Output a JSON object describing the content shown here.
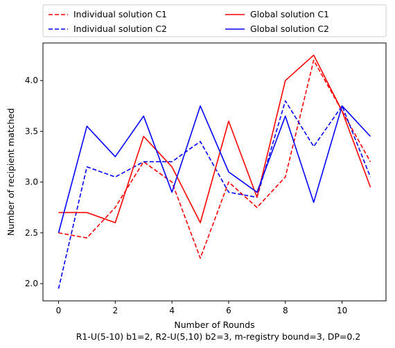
{
  "chart_data": {
    "type": "line",
    "xlabel": "Number of Rounds",
    "subtitle": "R1-U(5-10) b1=2, R2-U(5,10) b2=3, m-registry bound=3, DP=0.2",
    "ylabel": "Number of recipient matched",
    "xlim": [
      -0.55,
      11.55
    ],
    "ylim": [
      1.83,
      4.37
    ],
    "xticks": [
      0,
      2,
      4,
      6,
      8,
      10
    ],
    "yticks": [
      2.0,
      2.5,
      3.0,
      3.5,
      4.0
    ],
    "xtick_labels": [
      "0",
      "2",
      "4",
      "6",
      "8",
      "10"
    ],
    "ytick_labels": [
      "2.0",
      "2.5",
      "3.0",
      "3.5",
      "4.0"
    ],
    "grid": false,
    "legend_placement": "top, outside plot, two columns",
    "x": [
      0,
      1,
      2,
      3,
      4,
      5,
      6,
      7,
      8,
      9,
      10,
      11
    ],
    "series": [
      {
        "name": "Individual solution C1",
        "color": "#ff0000",
        "dashed": true,
        "values": [
          2.5,
          2.45,
          2.75,
          3.2,
          3.0,
          2.25,
          3.0,
          2.75,
          3.05,
          4.2,
          3.7,
          3.2
        ]
      },
      {
        "name": "Individual solution C2",
        "color": "#0000ff",
        "dashed": true,
        "values": [
          1.95,
          3.15,
          3.05,
          3.2,
          3.2,
          3.4,
          2.9,
          2.85,
          3.8,
          3.35,
          3.75,
          3.05
        ]
      },
      {
        "name": "Global solution C1",
        "color": "#ff0000",
        "dashed": false,
        "values": [
          2.7,
          2.7,
          2.6,
          3.45,
          3.15,
          2.6,
          3.6,
          2.85,
          4.0,
          4.25,
          3.7,
          2.95
        ]
      },
      {
        "name": "Global solution C2",
        "color": "#0000ff",
        "dashed": false,
        "values": [
          2.5,
          3.55,
          3.25,
          3.65,
          2.9,
          3.75,
          3.1,
          2.9,
          3.65,
          2.8,
          3.75,
          3.45
        ]
      }
    ]
  }
}
